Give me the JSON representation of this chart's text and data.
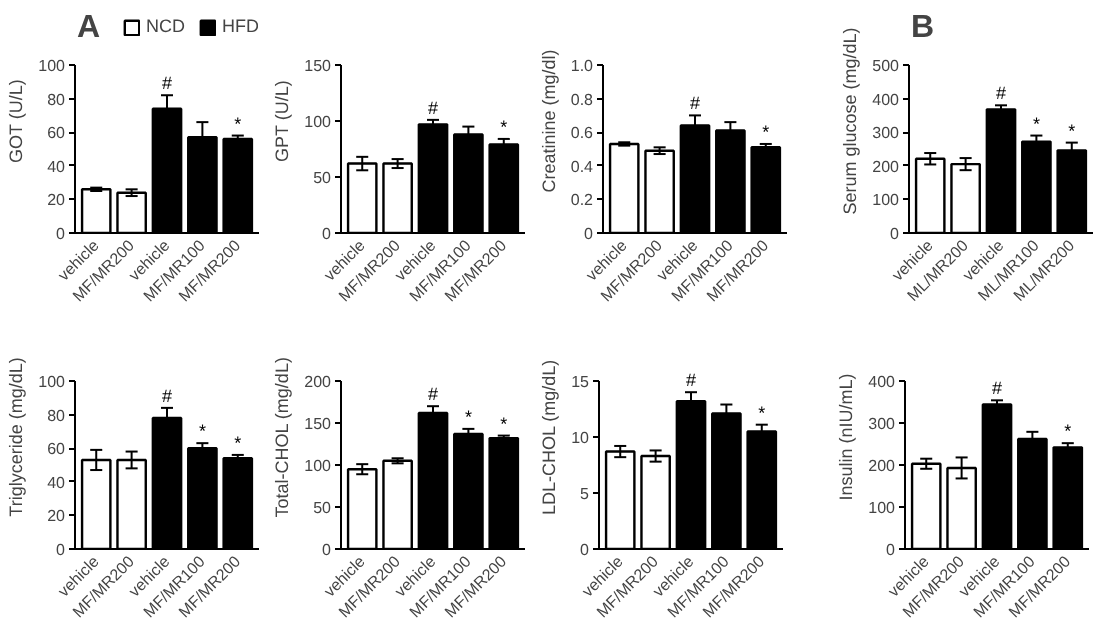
{
  "chart_data": [
    {
      "type": "bar",
      "ylabel": "GOT (U/L)",
      "categories": [
        "vehicle",
        "MF/MR200",
        "vehicle",
        "MF/MR100",
        "MF/MR200"
      ],
      "ylim": [
        0,
        100
      ],
      "yticks": [
        0,
        20,
        40,
        60,
        80,
        100
      ],
      "grid": false,
      "legend": "top",
      "annotations": [
        "A"
      ],
      "series": [
        {
          "name": "NCD",
          "color": "#ffffff",
          "values": [
            26,
            24,
            null,
            null,
            null
          ],
          "errors": [
            1,
            2,
            null,
            null,
            null
          ],
          "value_labels": [
            null,
            null,
            null,
            null,
            null
          ]
        },
        {
          "name": "HFD",
          "color": "#000000",
          "values": [
            null,
            null,
            74,
            57,
            56
          ],
          "errors": [
            null,
            null,
            8,
            9,
            2
          ],
          "value_labels": [
            null,
            null,
            "#",
            null,
            "*"
          ]
        }
      ]
    },
    {
      "type": "bar",
      "ylabel": "GPT (U/L)",
      "categories": [
        "vehicle",
        "MF/MR200",
        "vehicle",
        "MF/MR100",
        "MF/MR200"
      ],
      "ylim": [
        0,
        150
      ],
      "yticks": [
        0,
        50,
        100,
        150
      ],
      "grid": false,
      "series": [
        {
          "color": "#ffffff",
          "values": [
            62,
            62,
            null,
            null,
            null
          ],
          "errors": [
            6,
            4,
            null,
            null,
            null
          ],
          "value_labels": [
            null,
            null,
            null,
            null,
            null
          ]
        },
        {
          "color": "#000000",
          "values": [
            null,
            null,
            97,
            88,
            79
          ],
          "errors": [
            null,
            null,
            4,
            7,
            5
          ],
          "value_labels": [
            null,
            null,
            "#",
            null,
            "*"
          ]
        }
      ]
    },
    {
      "type": "bar",
      "ylabel": "Creatinine (mg/dl)",
      "categories": [
        "vehicle",
        "MF/MR200",
        "vehicle",
        "MF/MR100",
        "MF/MR200"
      ],
      "ylim": [
        0,
        1.0
      ],
      "yticks": [
        0,
        {
          "value": 0.2,
          "label": "0.2"
        },
        {
          "value": 0.4,
          "label": "0.4"
        },
        {
          "value": 0.6,
          "label": "0.6"
        },
        {
          "value": 0.8,
          "label": "0.8"
        },
        {
          "value": 1.0,
          "label": "1.0"
        }
      ],
      "grid": false,
      "series": [
        {
          "color": "#ffffff",
          "values": [
            0.53,
            0.49,
            null,
            null,
            null
          ],
          "errors": [
            0.01,
            0.02,
            null,
            null,
            null
          ],
          "value_labels": [
            null,
            null,
            null,
            null,
            null
          ]
        },
        {
          "color": "#000000",
          "values": [
            null,
            null,
            0.64,
            0.61,
            0.51
          ],
          "errors": [
            null,
            null,
            0.06,
            0.05,
            0.02
          ],
          "value_labels": [
            null,
            null,
            "#",
            null,
            "*"
          ]
        }
      ]
    },
    {
      "type": "bar",
      "ylabel": "Serum glucose (mg/dL)",
      "categories": [
        "vehicle",
        "ML/MR200",
        "vehicle",
        "ML/MR100",
        "ML/MR200"
      ],
      "ylim": [
        0,
        500
      ],
      "yticks": [
        0,
        100,
        200,
        300,
        400,
        500
      ],
      "grid": false,
      "annotations": [
        "B"
      ],
      "series": [
        {
          "color": "#ffffff",
          "values": [
            221,
            205,
            null,
            null,
            null
          ],
          "errors": [
            17,
            18,
            null,
            null,
            null
          ],
          "value_labels": [
            null,
            null,
            null,
            null,
            null
          ]
        },
        {
          "color": "#000000",
          "values": [
            null,
            null,
            368,
            272,
            246
          ],
          "errors": [
            null,
            null,
            12,
            18,
            23
          ],
          "value_labels": [
            null,
            null,
            "#",
            "*",
            "*"
          ]
        }
      ]
    },
    {
      "type": "bar",
      "ylabel": "Triglyceride (mg/dL)",
      "categories": [
        "vehicle",
        "MF/MR200",
        "vehicle",
        "MF/MR100",
        "MF/MR200"
      ],
      "ylim": [
        0,
        100
      ],
      "yticks": [
        0,
        20,
        40,
        60,
        80,
        100
      ],
      "grid": false,
      "series": [
        {
          "color": "#ffffff",
          "values": [
            53,
            53,
            null,
            null,
            null
          ],
          "errors": [
            6,
            5,
            null,
            null,
            null
          ],
          "value_labels": [
            null,
            null,
            null,
            null,
            null
          ]
        },
        {
          "color": "#000000",
          "values": [
            null,
            null,
            78,
            60,
            54
          ],
          "errors": [
            null,
            null,
            6,
            3,
            2
          ],
          "value_labels": [
            null,
            null,
            "#",
            "*",
            "*"
          ]
        }
      ]
    },
    {
      "type": "bar",
      "ylabel": "Total-CHOL (mg/dL)",
      "categories": [
        "vehicle",
        "MF/MR200",
        "vehicle",
        "MF/MR100",
        "MF/MR200"
      ],
      "ylim": [
        0,
        200
      ],
      "yticks": [
        0,
        50,
        100,
        150,
        200
      ],
      "grid": false,
      "series": [
        {
          "color": "#ffffff",
          "values": [
            95,
            105,
            null,
            null,
            null
          ],
          "errors": [
            6,
            3,
            null,
            null,
            null
          ],
          "value_labels": [
            null,
            null,
            null,
            null,
            null
          ]
        },
        {
          "color": "#000000",
          "values": [
            null,
            null,
            162,
            137,
            132
          ],
          "errors": [
            null,
            null,
            8,
            6,
            3
          ],
          "value_labels": [
            null,
            null,
            "#",
            "*",
            "*"
          ]
        }
      ]
    },
    {
      "type": "bar",
      "ylabel": "LDL-CHOL (mg/dL)",
      "categories": [
        "vehicle",
        "MF/MR200",
        "vehicle",
        "MF/MR100",
        "MF/MR200"
      ],
      "ylim": [
        0,
        15
      ],
      "yticks": [
        0,
        5,
        10,
        15
      ],
      "grid": false,
      "series": [
        {
          "color": "#ffffff",
          "values": [
            8.7,
            8.3,
            null,
            null,
            null
          ],
          "errors": [
            0.5,
            0.5,
            null,
            null,
            null
          ],
          "value_labels": [
            null,
            null,
            null,
            null,
            null
          ]
        },
        {
          "color": "#000000",
          "values": [
            null,
            null,
            13.2,
            12.1,
            10.5
          ],
          "errors": [
            null,
            null,
            0.8,
            0.8,
            0.6
          ],
          "value_labels": [
            null,
            null,
            "#",
            null,
            "*"
          ]
        }
      ]
    },
    {
      "type": "bar",
      "ylabel": "Insulin (nIU/mL)",
      "categories": [
        "vehicle",
        "MF/MR200",
        "vehicle",
        "MF/MR100",
        "MF/MR200"
      ],
      "ylim": [
        0,
        400
      ],
      "yticks": [
        0,
        100,
        200,
        300,
        400
      ],
      "grid": false,
      "series": [
        {
          "color": "#ffffff",
          "values": [
            203,
            193,
            null,
            null,
            null
          ],
          "errors": [
            12,
            25,
            null,
            null,
            null
          ],
          "value_labels": [
            null,
            null,
            null,
            null,
            null
          ]
        },
        {
          "color": "#000000",
          "values": [
            null,
            null,
            344,
            262,
            242
          ],
          "errors": [
            null,
            null,
            10,
            17,
            10
          ],
          "value_labels": [
            null,
            null,
            "#",
            null,
            "*"
          ]
        }
      ]
    }
  ]
}
